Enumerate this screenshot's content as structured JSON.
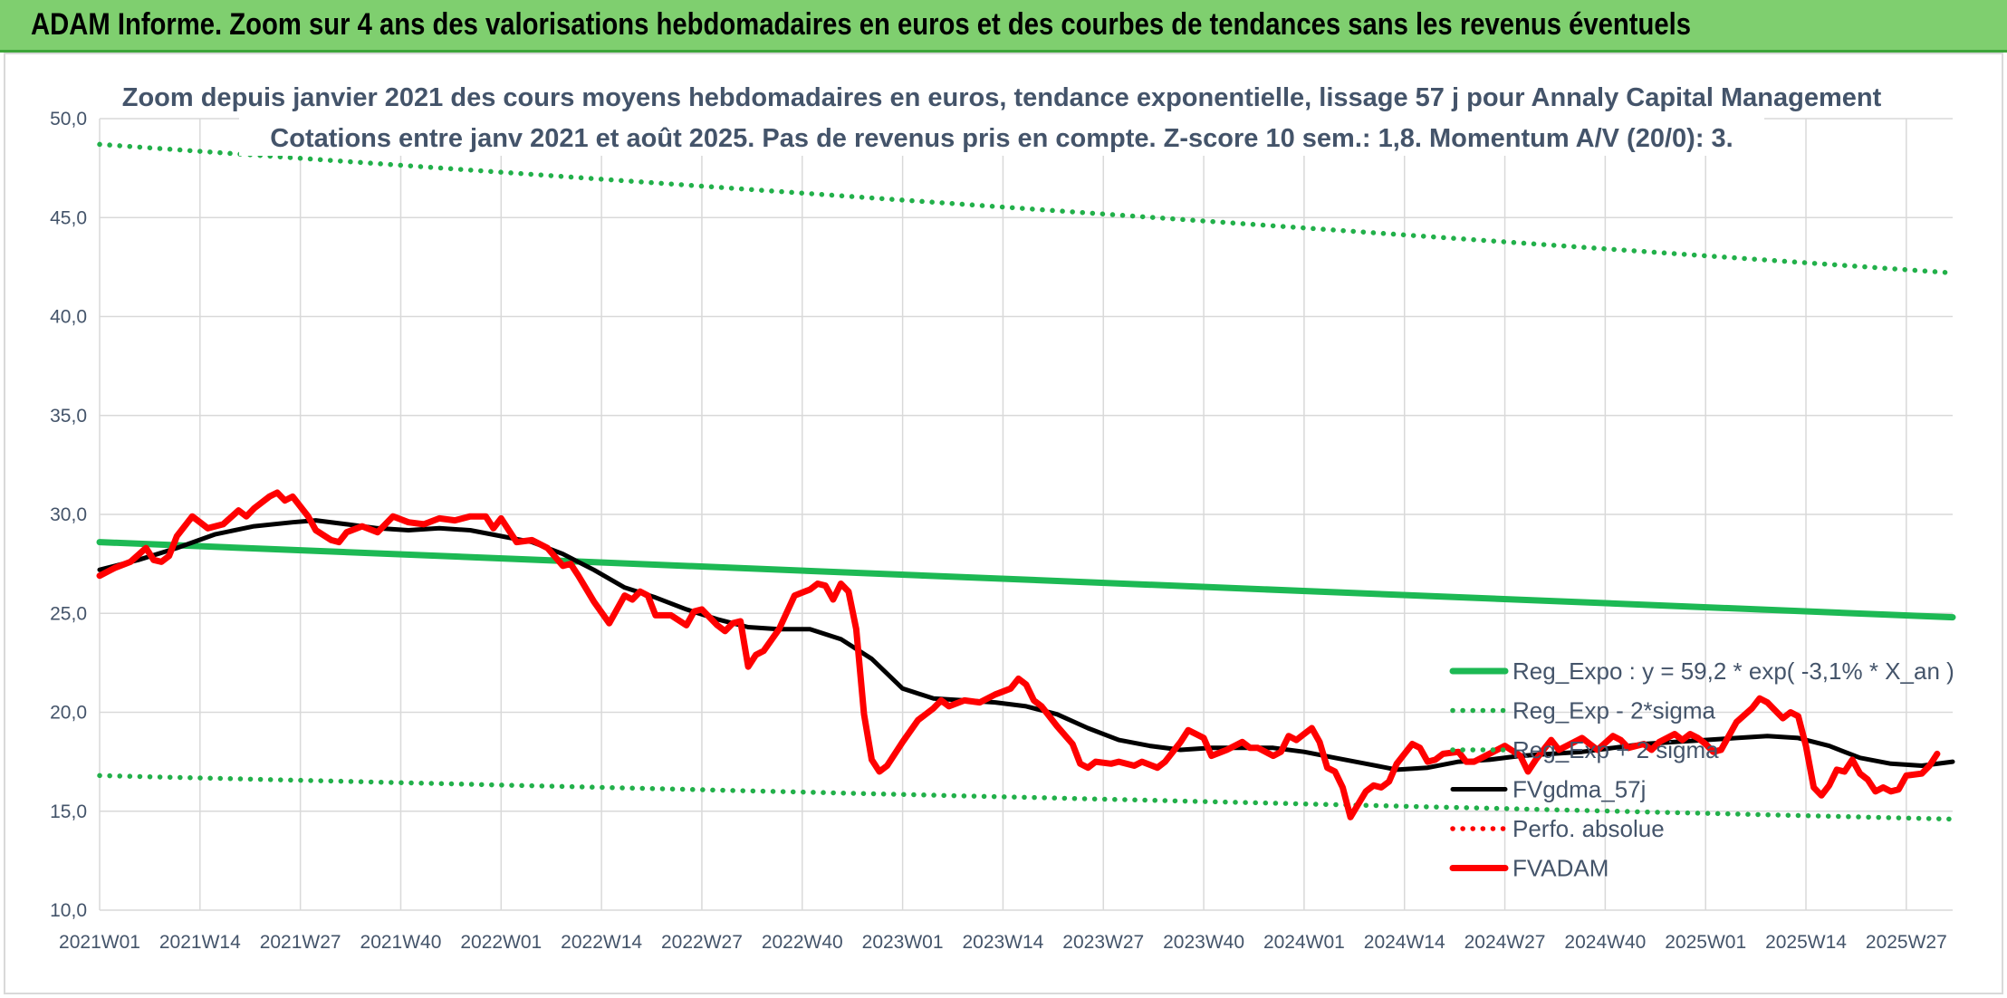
{
  "header": {
    "title": "ADAM Informe. Zoom sur 4 ans des valorisations hebdomadaires en euros et des courbes de tendances sans les revenus éventuels"
  },
  "colors": {
    "banner_bg": "#7fcf6f",
    "reg_green": "#1db954",
    "dotted_green": "#22b04a",
    "price_red": "#ff0000",
    "smooth_black": "#000000",
    "grid": "#d9d9d9",
    "text": "#44546a"
  },
  "chart_data": {
    "type": "line",
    "title": "Zoom depuis janvier 2021 des cours moyens hebdomadaires en euros, tendance exponentielle, lissage 57 j pour Annaly Capital Management",
    "subtitle": "Cotations entre janv 2021 et août 2025. Pas de revenus pris en compte. Z-score 10 sem.: 1,8. Momentum A/V (20/0): 3.",
    "xlabel": "",
    "ylabel": "",
    "ylim": [
      10,
      50
    ],
    "yticks": [
      "10,0",
      "15,0",
      "20,0",
      "25,0",
      "30,0",
      "35,0",
      "40,0",
      "45,0",
      "50,0"
    ],
    "x_tick_labels": [
      "2021W01",
      "2021W14",
      "2021W27",
      "2021W40",
      "2022W01",
      "2022W14",
      "2022W27",
      "2022W40",
      "2023W01",
      "2023W14",
      "2023W27",
      "2023W40",
      "2024W01",
      "2024W14",
      "2024W27",
      "2024W40",
      "2025W01",
      "2025W14",
      "2025W27"
    ],
    "x_range_weeks": [
      0,
      240
    ],
    "grid": true,
    "legend_position": "bottom-right",
    "series": [
      {
        "name": "Reg_Expo : y = 59,2 * exp( -3,1% *  X_an )",
        "style": "solid-thick",
        "color": "#1db954",
        "points": [
          [
            0,
            28.6
          ],
          [
            240,
            24.8
          ]
        ]
      },
      {
        "name": "Reg_Exp - 2*sigma",
        "style": "dotted",
        "color": "#22b04a",
        "points": [
          [
            0,
            16.8
          ],
          [
            240,
            14.6
          ]
        ]
      },
      {
        "name": "Reg_Exp + 2 sigma",
        "style": "dotted",
        "color": "#22b04a",
        "points": [
          [
            0,
            48.7
          ],
          [
            240,
            42.2
          ]
        ]
      },
      {
        "name": "FVgdma_57j",
        "style": "solid",
        "color": "#000000",
        "points": [
          [
            0,
            27.2
          ],
          [
            5,
            27.7
          ],
          [
            10,
            28.3
          ],
          [
            15,
            29.0
          ],
          [
            20,
            29.4
          ],
          [
            25,
            29.6
          ],
          [
            28,
            29.7
          ],
          [
            32,
            29.5
          ],
          [
            36,
            29.3
          ],
          [
            40,
            29.2
          ],
          [
            44,
            29.3
          ],
          [
            48,
            29.2
          ],
          [
            52,
            28.9
          ],
          [
            56,
            28.6
          ],
          [
            60,
            28.0
          ],
          [
            64,
            27.2
          ],
          [
            68,
            26.3
          ],
          [
            72,
            25.8
          ],
          [
            76,
            25.2
          ],
          [
            80,
            24.7
          ],
          [
            84,
            24.3
          ],
          [
            88,
            24.2
          ],
          [
            92,
            24.2
          ],
          [
            96,
            23.7
          ],
          [
            100,
            22.7
          ],
          [
            104,
            21.2
          ],
          [
            108,
            20.7
          ],
          [
            112,
            20.6
          ],
          [
            116,
            20.5
          ],
          [
            120,
            20.3
          ],
          [
            124,
            19.9
          ],
          [
            128,
            19.2
          ],
          [
            132,
            18.6
          ],
          [
            136,
            18.3
          ],
          [
            140,
            18.1
          ],
          [
            144,
            18.2
          ],
          [
            148,
            18.2
          ],
          [
            152,
            18.2
          ],
          [
            156,
            18.0
          ],
          [
            160,
            17.7
          ],
          [
            164,
            17.4
          ],
          [
            168,
            17.1
          ],
          [
            172,
            17.2
          ],
          [
            176,
            17.5
          ],
          [
            180,
            17.6
          ],
          [
            184,
            17.8
          ],
          [
            188,
            17.9
          ],
          [
            192,
            18.0
          ],
          [
            196,
            18.2
          ],
          [
            200,
            18.4
          ],
          [
            204,
            18.5
          ],
          [
            208,
            18.6
          ],
          [
            212,
            18.7
          ],
          [
            216,
            18.8
          ],
          [
            220,
            18.7
          ],
          [
            224,
            18.3
          ],
          [
            228,
            17.7
          ],
          [
            232,
            17.4
          ],
          [
            236,
            17.3
          ],
          [
            240,
            17.5
          ]
        ]
      },
      {
        "name": "Perfo. absolue",
        "style": "dotted",
        "color": "#ff0000",
        "points": []
      },
      {
        "name": "FVADAM",
        "style": "solid-thick",
        "color": "#ff0000",
        "points": [
          [
            0,
            26.9
          ],
          [
            2,
            27.3
          ],
          [
            4,
            27.6
          ],
          [
            6,
            28.3
          ],
          [
            7,
            27.7
          ],
          [
            8,
            27.6
          ],
          [
            9,
            27.9
          ],
          [
            10,
            28.9
          ],
          [
            12,
            29.9
          ],
          [
            13,
            29.6
          ],
          [
            14,
            29.3
          ],
          [
            16,
            29.5
          ],
          [
            18,
            30.2
          ],
          [
            19,
            29.9
          ],
          [
            20,
            30.3
          ],
          [
            22,
            30.9
          ],
          [
            23,
            31.1
          ],
          [
            24,
            30.7
          ],
          [
            25,
            30.9
          ],
          [
            27,
            29.9
          ],
          [
            28,
            29.2
          ],
          [
            30,
            28.7
          ],
          [
            31,
            28.6
          ],
          [
            32,
            29.1
          ],
          [
            34,
            29.4
          ],
          [
            36,
            29.1
          ],
          [
            38,
            29.9
          ],
          [
            40,
            29.6
          ],
          [
            42,
            29.5
          ],
          [
            44,
            29.8
          ],
          [
            46,
            29.7
          ],
          [
            48,
            29.9
          ],
          [
            50,
            29.9
          ],
          [
            51,
            29.3
          ],
          [
            52,
            29.8
          ],
          [
            54,
            28.6
          ],
          [
            56,
            28.7
          ],
          [
            58,
            28.3
          ],
          [
            60,
            27.4
          ],
          [
            61,
            27.5
          ],
          [
            62,
            26.9
          ],
          [
            64,
            25.6
          ],
          [
            66,
            24.5
          ],
          [
            68,
            25.9
          ],
          [
            69,
            25.7
          ],
          [
            70,
            26.1
          ],
          [
            71,
            25.9
          ],
          [
            72,
            24.9
          ],
          [
            74,
            24.9
          ],
          [
            76,
            24.4
          ],
          [
            77,
            25.1
          ],
          [
            78,
            25.2
          ],
          [
            80,
            24.4
          ],
          [
            81,
            24.1
          ],
          [
            82,
            24.5
          ],
          [
            83,
            24.6
          ],
          [
            84,
            22.3
          ],
          [
            85,
            22.9
          ],
          [
            86,
            23.1
          ],
          [
            88,
            24.2
          ],
          [
            90,
            25.9
          ],
          [
            92,
            26.2
          ],
          [
            93,
            26.5
          ],
          [
            94,
            26.4
          ],
          [
            95,
            25.7
          ],
          [
            96,
            26.5
          ],
          [
            97,
            26.1
          ],
          [
            98,
            24.2
          ],
          [
            99,
            19.9
          ],
          [
            100,
            17.6
          ],
          [
            101,
            17.0
          ],
          [
            102,
            17.3
          ],
          [
            104,
            18.5
          ],
          [
            106,
            19.6
          ],
          [
            108,
            20.2
          ],
          [
            109,
            20.6
          ],
          [
            110,
            20.3
          ],
          [
            112,
            20.6
          ],
          [
            114,
            20.5
          ],
          [
            116,
            20.9
          ],
          [
            118,
            21.2
          ],
          [
            119,
            21.7
          ],
          [
            120,
            21.4
          ],
          [
            121,
            20.6
          ],
          [
            122,
            20.3
          ],
          [
            124,
            19.3
          ],
          [
            126,
            18.4
          ],
          [
            127,
            17.4
          ],
          [
            128,
            17.2
          ],
          [
            129,
            17.5
          ],
          [
            131,
            17.4
          ],
          [
            132,
            17.5
          ],
          [
            134,
            17.3
          ],
          [
            135,
            17.5
          ],
          [
            137,
            17.2
          ],
          [
            138,
            17.5
          ],
          [
            140,
            18.5
          ],
          [
            141,
            19.1
          ],
          [
            142,
            18.9
          ],
          [
            143,
            18.7
          ],
          [
            144,
            17.8
          ],
          [
            146,
            18.1
          ],
          [
            148,
            18.5
          ],
          [
            149,
            18.2
          ],
          [
            150,
            18.2
          ],
          [
            152,
            17.8
          ],
          [
            153,
            18.0
          ],
          [
            154,
            18.8
          ],
          [
            155,
            18.6
          ],
          [
            156,
            18.9
          ],
          [
            157,
            19.2
          ],
          [
            158,
            18.5
          ],
          [
            159,
            17.2
          ],
          [
            160,
            17.0
          ],
          [
            161,
            16.2
          ],
          [
            162,
            14.7
          ],
          [
            164,
            16.0
          ],
          [
            165,
            16.3
          ],
          [
            166,
            16.2
          ],
          [
            167,
            16.5
          ],
          [
            168,
            17.4
          ],
          [
            170,
            18.4
          ],
          [
            171,
            18.2
          ],
          [
            172,
            17.5
          ],
          [
            173,
            17.6
          ],
          [
            174,
            17.9
          ],
          [
            176,
            18.0
          ],
          [
            177,
            17.5
          ],
          [
            178,
            17.5
          ],
          [
            180,
            17.9
          ],
          [
            182,
            18.3
          ],
          [
            184,
            17.8
          ],
          [
            185,
            17.0
          ],
          [
            186,
            17.6
          ],
          [
            188,
            18.6
          ],
          [
            189,
            18.1
          ],
          [
            190,
            18.3
          ],
          [
            192,
            18.7
          ],
          [
            193,
            18.4
          ],
          [
            194,
            18.1
          ],
          [
            196,
            18.8
          ],
          [
            197,
            18.6
          ],
          [
            198,
            18.2
          ],
          [
            200,
            18.4
          ],
          [
            201,
            18.1
          ],
          [
            202,
            18.5
          ],
          [
            204,
            18.9
          ],
          [
            205,
            18.6
          ],
          [
            206,
            18.9
          ],
          [
            207,
            18.7
          ],
          [
            208,
            18.4
          ],
          [
            209,
            18.0
          ],
          [
            210,
            18.1
          ],
          [
            212,
            19.5
          ],
          [
            214,
            20.2
          ],
          [
            215,
            20.7
          ],
          [
            216,
            20.5
          ],
          [
            217,
            20.1
          ],
          [
            218,
            19.7
          ],
          [
            219,
            20.0
          ],
          [
            220,
            19.8
          ],
          [
            221,
            18.3
          ],
          [
            222,
            16.2
          ],
          [
            223,
            15.8
          ],
          [
            224,
            16.3
          ],
          [
            225,
            17.1
          ],
          [
            226,
            17.0
          ],
          [
            227,
            17.6
          ],
          [
            228,
            16.9
          ],
          [
            229,
            16.6
          ],
          [
            230,
            16.0
          ],
          [
            231,
            16.2
          ],
          [
            232,
            16.0
          ],
          [
            233,
            16.1
          ],
          [
            234,
            16.8
          ],
          [
            236,
            16.9
          ],
          [
            237,
            17.3
          ],
          [
            238,
            17.9
          ]
        ]
      }
    ]
  }
}
